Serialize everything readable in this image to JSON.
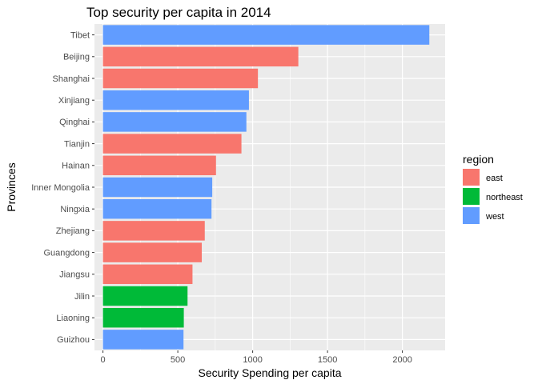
{
  "chart_data": {
    "type": "bar",
    "orientation": "horizontal",
    "title": "Top security per capita in 2014",
    "xlabel": "Security Spending per capita",
    "ylabel": "Provinces",
    "xlim": [
      0,
      2250
    ],
    "x_ticks": [
      0,
      500,
      1000,
      1500,
      2000
    ],
    "grid": true,
    "legend": {
      "title": "region",
      "position": "right",
      "items": [
        {
          "name": "east",
          "color": "#F8766D"
        },
        {
          "name": "northeast",
          "color": "#00BA38"
        },
        {
          "name": "west",
          "color": "#619CFF"
        }
      ]
    },
    "categories": [
      "Tibet",
      "Beijing",
      "Shanghai",
      "Xinjiang",
      "Qinghai",
      "Tianjin",
      "Hainan",
      "Inner Mongolia",
      "Ningxia",
      "Zhejiang",
      "Guangdong",
      "Jiangsu",
      "Jilin",
      "Liaoning",
      "Guizhou"
    ],
    "values": [
      2180,
      1305,
      1035,
      975,
      958,
      925,
      755,
      730,
      725,
      680,
      660,
      598,
      565,
      540,
      538
    ],
    "regions": [
      "west",
      "east",
      "east",
      "west",
      "west",
      "east",
      "east",
      "west",
      "west",
      "east",
      "east",
      "east",
      "northeast",
      "northeast",
      "west"
    ]
  }
}
